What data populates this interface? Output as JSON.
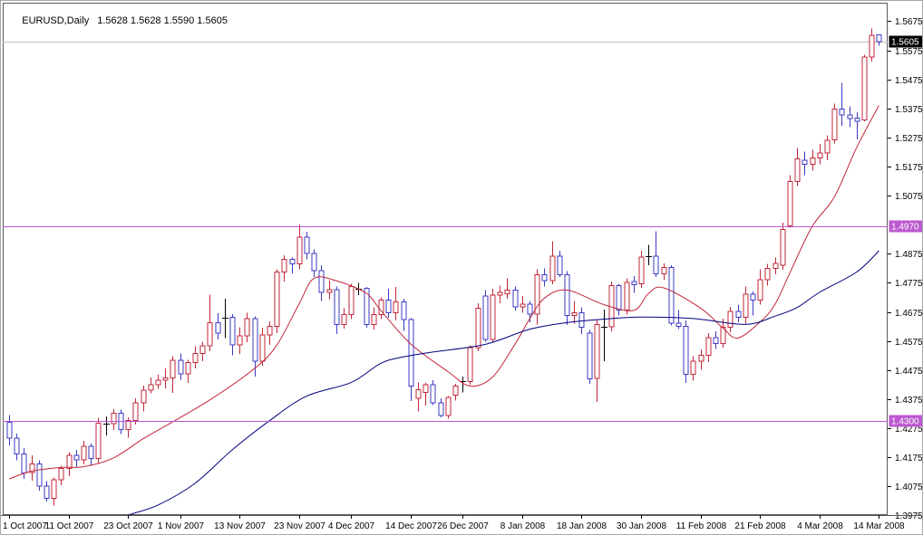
{
  "header": {
    "symbol_period": "EURUSD,Daily",
    "ohlc": "1.5628 1.5628 1.5590 1.5605"
  },
  "colors": {
    "background": "#ffffff",
    "frame": "#5a5a5a",
    "text": "#000000",
    "up": "#c1273a",
    "down": "#3b3bc4",
    "doji": "#000000",
    "ma_fast": "#c1273a",
    "ma_slow": "#00007e",
    "hline": "#ba55d3",
    "bid_line": "#bdbdbd",
    "badge_bid_bg": "#000000",
    "badge_hline_bg": "#bb59cf",
    "badge_text": "#ffffff"
  },
  "chart_data": {
    "type": "candlestick",
    "title": "EURUSD,Daily",
    "symbol": "EURUSD",
    "timeframe": "Daily",
    "current_ohlc": {
      "open": 1.5628,
      "high": 1.5628,
      "low": 1.559,
      "close": 1.5605
    },
    "y_axis": {
      "range": [
        1.3975,
        1.5675
      ],
      "tick_step": 0.01,
      "visible_ticks": [
        "1.5675",
        "1.5575",
        "1.5475",
        "1.5375",
        "1.5275",
        "1.5175",
        "1.5075",
        "1.4875",
        "1.4775",
        "1.4675",
        "1.4575",
        "1.4475",
        "1.4375",
        "1.4275",
        "1.4175",
        "1.4075",
        "1.3975"
      ]
    },
    "x_axis": {
      "labels": [
        {
          "text": "1 Oct 2007",
          "index": 0
        },
        {
          "text": "11 Oct 2007",
          "index": 8
        },
        {
          "text": "23 Oct 2007",
          "index": 16
        },
        {
          "text": "1 Nov 2007",
          "index": 23
        },
        {
          "text": "13 Nov 2007",
          "index": 31
        },
        {
          "text": "23 Nov 2007",
          "index": 39
        },
        {
          "text": "4 Dec 2007",
          "index": 46
        },
        {
          "text": "14 Dec 2007",
          "index": 54
        },
        {
          "text": "26 Dec 2007",
          "index": 61
        },
        {
          "text": "8 Jan 2008",
          "index": 69
        },
        {
          "text": "18 Jan 2008",
          "index": 77
        },
        {
          "text": "30 Jan 2008",
          "index": 85
        },
        {
          "text": "11 Feb 2008",
          "index": 93
        },
        {
          "text": "21 Feb 2008",
          "index": 101
        },
        {
          "text": "4 Mar 2008",
          "index": 109
        },
        {
          "text": "14 Mar 2008",
          "index": 117
        }
      ]
    },
    "horizontal_lines": [
      {
        "price": 1.497,
        "label": "1.4970"
      },
      {
        "price": 1.43,
        "label": "1.4300"
      }
    ],
    "bid": {
      "price": 1.5605,
      "label": "1.5605"
    },
    "legend_position": "none",
    "grid": false,
    "candles": [
      [
        "1 Oct 2007",
        1.4295,
        1.432,
        1.4215,
        1.424
      ],
      [
        "2 Oct 2007",
        1.424,
        1.4256,
        1.4165,
        1.4186
      ],
      [
        "3 Oct 2007",
        1.4186,
        1.4206,
        1.41,
        1.4121
      ],
      [
        "4 Oct 2007",
        1.4122,
        1.4182,
        1.4095,
        1.4152
      ],
      [
        "5 Oct 2007",
        1.4152,
        1.4165,
        1.406,
        1.4076
      ],
      [
        "8 Oct 2007",
        1.4076,
        1.4092,
        1.4022,
        1.4033
      ],
      [
        "9 Oct 2007",
        1.4033,
        1.4105,
        1.4009,
        1.4098
      ],
      [
        "10 Oct 2007",
        1.4098,
        1.4146,
        1.4078,
        1.4136
      ],
      [
        "11 Oct 2007",
        1.4136,
        1.4192,
        1.411,
        1.4182
      ],
      [
        "12 Oct 2007",
        1.4182,
        1.42,
        1.414,
        1.4166
      ],
      [
        "15 Oct 2007",
        1.4166,
        1.4232,
        1.415,
        1.4212
      ],
      [
        "16 Oct 2007",
        1.4212,
        1.4222,
        1.4148,
        1.417
      ],
      [
        "17 Oct 2007",
        1.417,
        1.431,
        1.4152,
        1.4292
      ],
      [
        "18 Oct 2007",
        1.4291,
        1.4316,
        1.425,
        1.4291
      ],
      [
        "19 Oct 2007",
        1.4291,
        1.434,
        1.4268,
        1.4326
      ],
      [
        "22 Oct 2007",
        1.4326,
        1.4338,
        1.4254,
        1.427
      ],
      [
        "23 Oct 2007",
        1.427,
        1.4312,
        1.4242,
        1.4302
      ],
      [
        "24 Oct 2007",
        1.4302,
        1.4378,
        1.4288,
        1.4362
      ],
      [
        "25 Oct 2007",
        1.4362,
        1.4422,
        1.4332,
        1.4405
      ],
      [
        "26 Oct 2007",
        1.4405,
        1.445,
        1.4395,
        1.4425
      ],
      [
        "29 Oct 2007",
        1.4425,
        1.4458,
        1.441,
        1.444
      ],
      [
        "30 Oct 2007",
        1.444,
        1.448,
        1.4412,
        1.4448
      ],
      [
        "31 Oct 2007",
        1.4448,
        1.4522,
        1.4396,
        1.4508
      ],
      [
        "1 Nov 2007",
        1.4508,
        1.4532,
        1.4442,
        1.4462
      ],
      [
        "2 Nov 2007",
        1.4462,
        1.451,
        1.443,
        1.45
      ],
      [
        "5 Nov 2007",
        1.45,
        1.4556,
        1.448,
        1.4532
      ],
      [
        "6 Nov 2007",
        1.4532,
        1.4572,
        1.4505,
        1.4558
      ],
      [
        "7 Nov 2007",
        1.4558,
        1.4735,
        1.454,
        1.4638
      ],
      [
        "8 Nov 2007",
        1.4638,
        1.467,
        1.458,
        1.4602
      ],
      [
        "9 Nov 2007",
        1.4656,
        1.472,
        1.4585,
        1.4656
      ],
      [
        "12 Nov 2007",
        1.4656,
        1.4668,
        1.4525,
        1.4562
      ],
      [
        "13 Nov 2007",
        1.4562,
        1.4622,
        1.453,
        1.4592
      ],
      [
        "14 Nov 2007",
        1.4592,
        1.4672,
        1.457,
        1.4652
      ],
      [
        "15 Nov 2007",
        1.4652,
        1.466,
        1.4452,
        1.4506
      ],
      [
        "16 Nov 2007",
        1.4506,
        1.462,
        1.449,
        1.4596
      ],
      [
        "19 Nov 2007",
        1.4596,
        1.4642,
        1.4562,
        1.4626
      ],
      [
        "20 Nov 2007",
        1.4626,
        1.4822,
        1.4602,
        1.4812
      ],
      [
        "21 Nov 2007",
        1.4812,
        1.487,
        1.478,
        1.4856
      ],
      [
        "22 Nov 2007",
        1.4856,
        1.4862,
        1.4808,
        1.484
      ],
      [
        "23 Nov 2007",
        1.484,
        1.4975,
        1.4822,
        1.4932
      ],
      [
        "26 Nov 2007",
        1.4932,
        1.495,
        1.4855,
        1.4876
      ],
      [
        "27 Nov 2007",
        1.4876,
        1.489,
        1.4795,
        1.4816
      ],
      [
        "28 Nov 2007",
        1.4816,
        1.4835,
        1.4712,
        1.4742
      ],
      [
        "29 Nov 2007",
        1.4742,
        1.4782,
        1.4718,
        1.4752
      ],
      [
        "30 Nov 2007",
        1.4752,
        1.4762,
        1.4598,
        1.4632
      ],
      [
        "3 Dec 2007",
        1.4632,
        1.4688,
        1.4618,
        1.4666
      ],
      [
        "4 Dec 2007",
        1.4666,
        1.4772,
        1.465,
        1.4762
      ],
      [
        "5 Dec 2007",
        1.4762,
        1.4775,
        1.4732,
        1.4756
      ],
      [
        "6 Dec 2007",
        1.4756,
        1.476,
        1.462,
        1.4632
      ],
      [
        "7 Dec 2007",
        1.4632,
        1.469,
        1.4614,
        1.4666
      ],
      [
        "10 Dec 2007",
        1.4666,
        1.4725,
        1.465,
        1.4716
      ],
      [
        "11 Dec 2007",
        1.4716,
        1.4755,
        1.4655,
        1.4672
      ],
      [
        "12 Dec 2007",
        1.4672,
        1.476,
        1.4645,
        1.471
      ],
      [
        "13 Dec 2007",
        1.471,
        1.472,
        1.461,
        1.4648
      ],
      [
        "14 Dec 2007",
        1.4648,
        1.4655,
        1.4368,
        1.442
      ],
      [
        "17 Dec 2007",
        1.4378,
        1.4432,
        1.4332,
        1.4408
      ],
      [
        "18 Dec 2007",
        1.4398,
        1.443,
        1.4352,
        1.4425
      ],
      [
        "19 Dec 2007",
        1.4425,
        1.444,
        1.4355,
        1.4362
      ],
      [
        "20 Dec 2007",
        1.4362,
        1.4378,
        1.4312,
        1.4318
      ],
      [
        "21 Dec 2007",
        1.4318,
        1.4386,
        1.4308,
        1.438
      ],
      [
        "24 Dec 2007",
        1.4388,
        1.4428,
        1.437,
        1.442
      ],
      [
        "26 Dec 2007",
        1.4436,
        1.4452,
        1.4398,
        1.4436
      ],
      [
        "27 Dec 2007",
        1.4436,
        1.456,
        1.4425,
        1.4552
      ],
      [
        "28 Dec 2007",
        1.4552,
        1.4705,
        1.454,
        1.4688
      ],
      [
        "31 Dec 2007",
        1.473,
        1.475,
        1.4572,
        1.458
      ],
      [
        "2 Jan 2008",
        1.458,
        1.4755,
        1.457,
        1.4732
      ],
      [
        "3 Jan 2008",
        1.4732,
        1.4765,
        1.4705,
        1.4742
      ],
      [
        "4 Jan 2008",
        1.4738,
        1.479,
        1.472,
        1.475
      ],
      [
        "7 Jan 2008",
        1.475,
        1.4762,
        1.468,
        1.4692
      ],
      [
        "8 Jan 2008",
        1.4692,
        1.473,
        1.4672,
        1.4702
      ],
      [
        "9 Jan 2008",
        1.4702,
        1.4712,
        1.464,
        1.4668
      ],
      [
        "10 Jan 2008",
        1.4668,
        1.4822,
        1.4632,
        1.4802
      ],
      [
        "11 Jan 2008",
        1.4802,
        1.4825,
        1.4762,
        1.4782
      ],
      [
        "14 Jan 2008",
        1.4782,
        1.4918,
        1.477,
        1.4866
      ],
      [
        "15 Jan 2008",
        1.4866,
        1.4885,
        1.4795,
        1.4802
      ],
      [
        "16 Jan 2008",
        1.4802,
        1.4815,
        1.463,
        1.4662
      ],
      [
        "17 Jan 2008",
        1.4662,
        1.4712,
        1.4635,
        1.4672
      ],
      [
        "18 Jan 2008",
        1.4672,
        1.469,
        1.4598,
        1.4622
      ],
      [
        "21 Jan 2008",
        1.4602,
        1.4612,
        1.4427,
        1.4445
      ],
      [
        "22 Jan 2008",
        1.4446,
        1.465,
        1.4365,
        1.4632
      ],
      [
        "23 Jan 2008",
        1.4626,
        1.4683,
        1.4505,
        1.4624
      ],
      [
        "24 Jan 2008",
        1.4624,
        1.478,
        1.4608,
        1.4766
      ],
      [
        "25 Jan 2008",
        1.4766,
        1.4772,
        1.4662,
        1.4682
      ],
      [
        "28 Jan 2008",
        1.4682,
        1.479,
        1.4665,
        1.4776
      ],
      [
        "29 Jan 2008",
        1.478,
        1.4798,
        1.474,
        1.4768
      ],
      [
        "30 Jan 2008",
        1.4772,
        1.4885,
        1.4758,
        1.4864
      ],
      [
        "31 Jan 2008",
        1.4866,
        1.4906,
        1.4835,
        1.4866
      ],
      [
        "1 Feb 2008",
        1.4866,
        1.4952,
        1.4795,
        1.4806
      ],
      [
        "4 Feb 2008",
        1.4806,
        1.4842,
        1.4785,
        1.4828
      ],
      [
        "5 Feb 2008",
        1.4828,
        1.4835,
        1.4628,
        1.4636
      ],
      [
        "6 Feb 2008",
        1.4636,
        1.4682,
        1.4616,
        1.4626
      ],
      [
        "7 Feb 2008",
        1.4626,
        1.4645,
        1.4431,
        1.446
      ],
      [
        "8 Feb 2008",
        1.446,
        1.4522,
        1.4438,
        1.4506
      ],
      [
        "11 Feb 2008",
        1.4506,
        1.4546,
        1.4475,
        1.4526
      ],
      [
        "12 Feb 2008",
        1.4526,
        1.4602,
        1.4502,
        1.4586
      ],
      [
        "13 Feb 2008",
        1.4586,
        1.4608,
        1.4548,
        1.4566
      ],
      [
        "14 Feb 2008",
        1.4566,
        1.4652,
        1.4552,
        1.4622
      ],
      [
        "15 Feb 2008",
        1.4622,
        1.4692,
        1.4605,
        1.4676
      ],
      [
        "18 Feb 2008",
        1.4676,
        1.47,
        1.464,
        1.4656
      ],
      [
        "19 Feb 2008",
        1.4656,
        1.4762,
        1.4635,
        1.4736
      ],
      [
        "20 Feb 2008",
        1.4736,
        1.4745,
        1.4662,
        1.4716
      ],
      [
        "21 Feb 2008",
        1.4716,
        1.4822,
        1.47,
        1.4786
      ],
      [
        "22 Feb 2008",
        1.4786,
        1.484,
        1.4765,
        1.4824
      ],
      [
        "25 Feb 2008",
        1.4824,
        1.4862,
        1.4805,
        1.4842
      ],
      [
        "26 Feb 2008",
        1.4835,
        1.4982,
        1.482,
        1.4958
      ],
      [
        "27 Feb 2008",
        1.4971,
        1.5145,
        1.4965,
        1.5124
      ],
      [
        "28 Feb 2008",
        1.5124,
        1.5239,
        1.5108,
        1.5202
      ],
      [
        "29 Feb 2008",
        1.5196,
        1.5226,
        1.5145,
        1.5182
      ],
      [
        "3 Mar 2008",
        1.5182,
        1.5232,
        1.5161,
        1.5205
      ],
      [
        "4 Mar 2008",
        1.5205,
        1.5252,
        1.5182,
        1.5222
      ],
      [
        "5 Mar 2008",
        1.5222,
        1.5282,
        1.5196,
        1.5265
      ],
      [
        "6 Mar 2008",
        1.5267,
        1.5392,
        1.5255,
        1.5372
      ],
      [
        "7 Mar 2008",
        1.5372,
        1.5463,
        1.5315,
        1.5352
      ],
      [
        "10 Mar 2008",
        1.5352,
        1.5382,
        1.531,
        1.534
      ],
      [
        "11 Mar 2008",
        1.5342,
        1.5362,
        1.5268,
        1.533
      ],
      [
        "12 Mar 2008",
        1.5336,
        1.556,
        1.533,
        1.5552
      ],
      [
        "13 Mar 2008",
        1.5552,
        1.565,
        1.5536,
        1.5626
      ],
      [
        "14 Mar 2008",
        1.5628,
        1.5628,
        1.559,
        1.5605
      ]
    ],
    "moving_averages": [
      {
        "name": "ma-fast-red",
        "color_key": "ma_fast",
        "anchors": [
          [
            0,
            1.41
          ],
          [
            3,
            1.4127
          ],
          [
            7,
            1.414
          ],
          [
            10,
            1.4142
          ],
          [
            14,
            1.4172
          ],
          [
            18,
            1.4238
          ],
          [
            21,
            1.4282
          ],
          [
            27,
            1.4372
          ],
          [
            33,
            1.448
          ],
          [
            36,
            1.456
          ],
          [
            39,
            1.4702
          ],
          [
            41,
            1.479
          ],
          [
            44,
            1.4782
          ],
          [
            48,
            1.474
          ],
          [
            50,
            1.468
          ],
          [
            54,
            1.4565
          ],
          [
            59,
            1.447
          ],
          [
            62,
            1.442
          ],
          [
            65,
            1.445
          ],
          [
            68,
            1.4562
          ],
          [
            70,
            1.465
          ],
          [
            72,
            1.4722
          ],
          [
            75,
            1.475
          ],
          [
            80,
            1.47
          ],
          [
            84,
            1.468
          ],
          [
            86,
            1.4738
          ],
          [
            88,
            1.4758
          ],
          [
            93,
            1.4688
          ],
          [
            96,
            1.462
          ],
          [
            98,
            1.4585
          ],
          [
            101,
            1.464
          ],
          [
            103,
            1.47
          ],
          [
            105,
            1.4808
          ],
          [
            108,
            1.4968
          ],
          [
            111,
            1.507
          ],
          [
            114,
            1.524
          ],
          [
            117,
            1.5385
          ]
        ]
      },
      {
        "name": "ma-slow-navy",
        "color_key": "ma_slow",
        "anchors": [
          [
            14,
            1.3942
          ],
          [
            16,
            1.3975
          ],
          [
            20,
            1.401
          ],
          [
            25,
            1.4085
          ],
          [
            30,
            1.42
          ],
          [
            35,
            1.43
          ],
          [
            40,
            1.4385
          ],
          [
            46,
            1.4432
          ],
          [
            50,
            1.4498
          ],
          [
            53,
            1.452
          ],
          [
            57,
            1.4537
          ],
          [
            64,
            1.4563
          ],
          [
            70,
            1.4615
          ],
          [
            75,
            1.4638
          ],
          [
            80,
            1.465
          ],
          [
            85,
            1.4657
          ],
          [
            92,
            1.4652
          ],
          [
            99,
            1.4632
          ],
          [
            103,
            1.466
          ],
          [
            106,
            1.469
          ],
          [
            109,
            1.4742
          ],
          [
            114,
            1.4812
          ],
          [
            117,
            1.4885
          ]
        ]
      }
    ]
  }
}
